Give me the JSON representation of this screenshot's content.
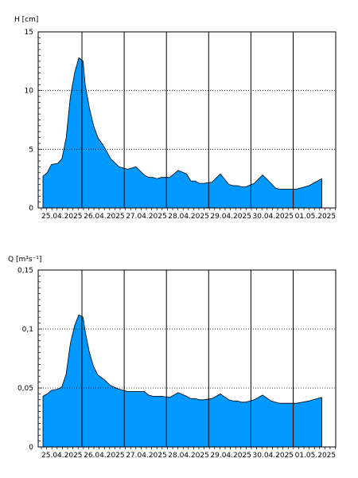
{
  "chart_data": [
    {
      "type": "area",
      "ylabel": "H [cm]",
      "ylim": [
        0,
        15
      ],
      "y_ticks": [
        "0",
        "5",
        "10",
        "15"
      ],
      "y_tick_values": [
        0,
        5,
        10,
        15
      ],
      "x_day_ticks": [
        "25.04.2025",
        "26.04.2025",
        "27.04.2025",
        "28.04.2025",
        "29.04.2025",
        "30.04.2025",
        "01.05.2025"
      ],
      "fill_color": "#0099ff",
      "grid": "dotted horizontal at y ticks, solid vertical at day boundaries",
      "series": [
        {
          "x": [
            0.0,
            0.1,
            0.2,
            0.35,
            0.45,
            0.55,
            0.65,
            0.75,
            0.85,
            0.95,
            1.0,
            1.1,
            1.2,
            1.3,
            1.45,
            1.6,
            1.8,
            2.0,
            2.2,
            2.4,
            2.5,
            2.6,
            2.7,
            2.8,
            3.0,
            3.2,
            3.4,
            3.5,
            3.55,
            3.6,
            3.7,
            3.8,
            4.0,
            4.2,
            4.4,
            4.5,
            4.6,
            4.7,
            4.8,
            5.0,
            5.2,
            5.4,
            5.5,
            5.6,
            5.7,
            5.8,
            6.0,
            6.3,
            6.6
          ],
          "y": [
            2.7,
            3.0,
            3.7,
            3.8,
            4.2,
            6.0,
            9.5,
            11.5,
            12.8,
            12.5,
            10.5,
            8.5,
            7.0,
            6.0,
            5.2,
            4.2,
            3.5,
            3.3,
            3.5,
            2.8,
            2.6,
            2.6,
            2.5,
            2.6,
            2.6,
            3.2,
            2.9,
            2.3,
            2.3,
            2.3,
            2.1,
            2.1,
            2.2,
            2.9,
            2.0,
            1.9,
            1.9,
            1.8,
            1.8,
            2.1,
            2.8,
            2.1,
            1.7,
            1.6,
            1.6,
            1.6,
            1.6,
            1.9,
            2.5
          ]
        }
      ]
    },
    {
      "type": "area",
      "ylabel": "Q [m³s⁻¹]",
      "ylim": [
        0,
        0.15
      ],
      "y_ticks": [
        "0",
        "0,05",
        "0,1",
        "0,15"
      ],
      "y_tick_values": [
        0,
        0.05,
        0.1,
        0.15
      ],
      "x_day_ticks": [
        "25.04.2025",
        "26.04.2025",
        "27.04.2025",
        "28.04.2025",
        "29.04.2025",
        "30.04.2025",
        "01.05.2025"
      ],
      "fill_color": "#0099ff",
      "grid": "dotted horizontal at y ticks, solid vertical at day boundaries",
      "series": [
        {
          "x": [
            0.0,
            0.1,
            0.2,
            0.35,
            0.45,
            0.55,
            0.65,
            0.75,
            0.85,
            0.95,
            1.0,
            1.1,
            1.2,
            1.3,
            1.45,
            1.6,
            1.8,
            2.0,
            2.2,
            2.4,
            2.5,
            2.6,
            2.7,
            2.8,
            3.0,
            3.2,
            3.4,
            3.5,
            3.55,
            3.6,
            3.7,
            3.8,
            4.0,
            4.2,
            4.4,
            4.5,
            4.6,
            4.7,
            4.8,
            5.0,
            5.2,
            5.4,
            5.5,
            5.6,
            5.7,
            5.8,
            6.0,
            6.3,
            6.6
          ],
          "y": [
            0.043,
            0.045,
            0.048,
            0.049,
            0.051,
            0.062,
            0.088,
            0.103,
            0.112,
            0.11,
            0.098,
            0.08,
            0.068,
            0.061,
            0.057,
            0.052,
            0.049,
            0.047,
            0.047,
            0.047,
            0.044,
            0.043,
            0.043,
            0.043,
            0.042,
            0.046,
            0.043,
            0.041,
            0.041,
            0.041,
            0.04,
            0.04,
            0.041,
            0.045,
            0.04,
            0.039,
            0.039,
            0.038,
            0.038,
            0.04,
            0.044,
            0.039,
            0.038,
            0.037,
            0.037,
            0.037,
            0.037,
            0.039,
            0.042
          ]
        }
      ]
    }
  ]
}
